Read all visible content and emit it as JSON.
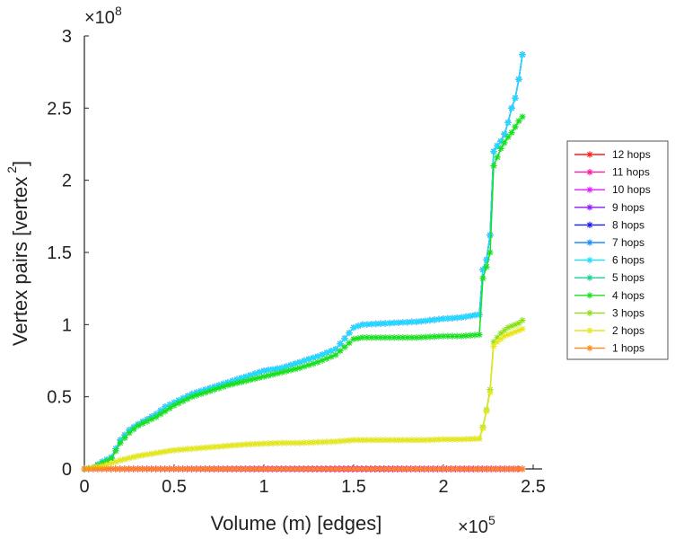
{
  "chart_data": {
    "type": "line",
    "xlabel": "Volume (m) [edges]",
    "ylabel": "Vertex pairs [vertex",
    "ylabel_exp": "2",
    "ylabel_close": "]",
    "x_multiplier": "×10",
    "x_multiplier_exp": "5",
    "y_multiplier": "×10",
    "y_multiplier_exp": "8",
    "x_scale": 100000,
    "y_scale": 100000000,
    "xlim": [
      0,
      2.55
    ],
    "ylim": [
      0,
      3.0
    ],
    "xticks": [
      0,
      0.5,
      1,
      1.5,
      2,
      2.5
    ],
    "xtick_labels": [
      "0",
      "0.5",
      "1",
      "1.5",
      "2",
      "2.5"
    ],
    "yticks": [
      0,
      0.5,
      1,
      1.5,
      2,
      2.5,
      3
    ],
    "ytick_labels": [
      "0",
      "0.5",
      "1",
      "1.5",
      "2",
      "2.5",
      "3"
    ],
    "legend_position": "right",
    "series": [
      {
        "name": "12 hops",
        "color": "#ff1a1a",
        "x": [
          0,
          2.44
        ],
        "y": [
          0,
          0
        ]
      },
      {
        "name": "11 hops",
        "color": "#ff1aa8",
        "x": [
          0,
          2.44
        ],
        "y": [
          0,
          0
        ]
      },
      {
        "name": "10 hops",
        "color": "#e01aff",
        "x": [
          0,
          2.44
        ],
        "y": [
          0,
          0
        ]
      },
      {
        "name": "9 hops",
        "color": "#8a1aff",
        "x": [
          0,
          0.05,
          0.1,
          0.15,
          0.2,
          0.25,
          0.3,
          0.4,
          0.45,
          0.5,
          0.6,
          0.7,
          0.8,
          0.9,
          1.0,
          1.1,
          1.2,
          1.3,
          1.4,
          1.5,
          1.55,
          1.7,
          1.85,
          2.0,
          2.1,
          2.2,
          2.22,
          2.24,
          2.26,
          2.28,
          2.3,
          2.32,
          2.34,
          2.36,
          2.38,
          2.4,
          2.42,
          2.44
        ],
        "y": [
          0,
          0.01,
          0.05,
          0.08,
          0.2,
          0.27,
          0.31,
          0.38,
          0.43,
          0.46,
          0.52,
          0.56,
          0.6,
          0.64,
          0.68,
          0.7,
          0.74,
          0.78,
          0.83,
          0.98,
          1.0,
          1.01,
          1.02,
          1.04,
          1.05,
          1.07,
          1.38,
          1.45,
          1.62,
          2.2,
          2.24,
          2.27,
          2.32,
          2.4,
          2.5,
          2.57,
          2.7,
          2.87
        ]
      },
      {
        "name": "8 hops",
        "color": "#1a1aff",
        "x": [
          0,
          0.05,
          0.1,
          0.15,
          0.2,
          0.25,
          0.3,
          0.4,
          0.45,
          0.5,
          0.6,
          0.7,
          0.8,
          0.9,
          1.0,
          1.1,
          1.2,
          1.3,
          1.4,
          1.5,
          1.55,
          1.7,
          1.85,
          2.0,
          2.1,
          2.2,
          2.22,
          2.24,
          2.26,
          2.28,
          2.3,
          2.32,
          2.34,
          2.36,
          2.38,
          2.4,
          2.42,
          2.44
        ],
        "y": [
          0,
          0.01,
          0.05,
          0.08,
          0.2,
          0.27,
          0.31,
          0.38,
          0.43,
          0.46,
          0.52,
          0.56,
          0.6,
          0.64,
          0.68,
          0.7,
          0.74,
          0.78,
          0.83,
          0.98,
          1.0,
          1.01,
          1.02,
          1.04,
          1.05,
          1.07,
          1.38,
          1.45,
          1.62,
          2.2,
          2.24,
          2.27,
          2.32,
          2.4,
          2.5,
          2.57,
          2.7,
          2.87
        ]
      },
      {
        "name": "7 hops",
        "color": "#1a8cff",
        "x": [
          0,
          0.05,
          0.1,
          0.15,
          0.2,
          0.25,
          0.3,
          0.4,
          0.45,
          0.5,
          0.6,
          0.7,
          0.8,
          0.9,
          1.0,
          1.1,
          1.2,
          1.3,
          1.4,
          1.5,
          1.55,
          1.7,
          1.85,
          2.0,
          2.1,
          2.2,
          2.22,
          2.24,
          2.26,
          2.28,
          2.3,
          2.32,
          2.34,
          2.36,
          2.38,
          2.4,
          2.42,
          2.44
        ],
        "y": [
          0,
          0.01,
          0.05,
          0.08,
          0.2,
          0.27,
          0.31,
          0.38,
          0.43,
          0.46,
          0.52,
          0.56,
          0.6,
          0.64,
          0.68,
          0.7,
          0.74,
          0.78,
          0.83,
          0.98,
          1.0,
          1.01,
          1.02,
          1.04,
          1.05,
          1.07,
          1.38,
          1.45,
          1.62,
          2.2,
          2.24,
          2.27,
          2.32,
          2.4,
          2.5,
          2.57,
          2.7,
          2.87
        ]
      },
      {
        "name": "6 hops",
        "color": "#1ae0ff",
        "x": [
          0,
          0.05,
          0.1,
          0.15,
          0.2,
          0.25,
          0.3,
          0.4,
          0.45,
          0.5,
          0.6,
          0.7,
          0.8,
          0.9,
          1.0,
          1.1,
          1.2,
          1.3,
          1.4,
          1.5,
          1.55,
          1.7,
          1.85,
          2.0,
          2.1,
          2.2,
          2.22,
          2.24,
          2.26,
          2.28,
          2.3,
          2.32,
          2.34,
          2.36,
          2.38,
          2.4,
          2.42,
          2.44
        ],
        "y": [
          0,
          0.01,
          0.05,
          0.08,
          0.2,
          0.27,
          0.31,
          0.38,
          0.43,
          0.46,
          0.52,
          0.56,
          0.6,
          0.64,
          0.68,
          0.7,
          0.74,
          0.78,
          0.83,
          0.98,
          1.0,
          1.01,
          1.02,
          1.04,
          1.05,
          1.07,
          1.38,
          1.45,
          1.62,
          2.2,
          2.24,
          2.27,
          2.32,
          2.4,
          2.5,
          2.57,
          2.7,
          2.87
        ]
      },
      {
        "name": "5 hops",
        "color": "#1ad28c",
        "x": [
          0,
          0.05,
          0.1,
          0.15,
          0.2,
          0.25,
          0.3,
          0.4,
          0.45,
          0.5,
          0.6,
          0.7,
          0.8,
          0.9,
          1.0,
          1.1,
          1.2,
          1.3,
          1.4,
          1.5,
          1.55,
          1.7,
          1.85,
          2.0,
          2.1,
          2.2,
          2.22,
          2.24,
          2.26,
          2.28,
          2.3,
          2.32,
          2.34,
          2.36,
          2.38,
          2.4,
          2.42,
          2.44
        ],
        "y": [
          0,
          0.01,
          0.04,
          0.07,
          0.18,
          0.25,
          0.3,
          0.36,
          0.4,
          0.44,
          0.5,
          0.54,
          0.58,
          0.61,
          0.64,
          0.67,
          0.7,
          0.74,
          0.79,
          0.9,
          0.91,
          0.91,
          0.91,
          0.92,
          0.92,
          0.93,
          1.32,
          1.4,
          1.5,
          2.1,
          2.16,
          2.22,
          2.26,
          2.3,
          2.33,
          2.37,
          2.41,
          2.44
        ]
      },
      {
        "name": "4 hops",
        "color": "#1ae01a",
        "x": [
          0,
          0.05,
          0.1,
          0.15,
          0.2,
          0.25,
          0.3,
          0.4,
          0.45,
          0.5,
          0.6,
          0.7,
          0.8,
          0.9,
          1.0,
          1.1,
          1.2,
          1.3,
          1.4,
          1.5,
          1.55,
          1.7,
          1.85,
          2.0,
          2.1,
          2.2,
          2.22,
          2.24,
          2.26,
          2.28,
          2.3,
          2.32,
          2.34,
          2.36,
          2.38,
          2.4,
          2.42,
          2.44
        ],
        "y": [
          0,
          0.01,
          0.04,
          0.07,
          0.18,
          0.25,
          0.3,
          0.36,
          0.4,
          0.44,
          0.5,
          0.54,
          0.58,
          0.61,
          0.64,
          0.67,
          0.7,
          0.74,
          0.79,
          0.9,
          0.91,
          0.91,
          0.91,
          0.92,
          0.92,
          0.93,
          1.32,
          1.4,
          1.5,
          2.1,
          2.16,
          2.22,
          2.26,
          2.3,
          2.33,
          2.37,
          2.41,
          2.44
        ]
      },
      {
        "name": "3 hops",
        "color": "#8ce01a",
        "x": [
          0,
          0.1,
          0.2,
          0.3,
          0.4,
          0.5,
          0.6,
          0.7,
          0.8,
          0.9,
          1.0,
          1.1,
          1.2,
          1.3,
          1.4,
          1.5,
          1.6,
          1.7,
          1.8,
          1.9,
          2.0,
          2.1,
          2.2,
          2.22,
          2.24,
          2.26,
          2.28,
          2.3,
          2.32,
          2.34,
          2.36,
          2.38,
          2.4,
          2.42,
          2.44
        ],
        "y": [
          0,
          0.02,
          0.06,
          0.09,
          0.11,
          0.13,
          0.14,
          0.15,
          0.16,
          0.17,
          0.175,
          0.18,
          0.18,
          0.185,
          0.19,
          0.2,
          0.2,
          0.2,
          0.2,
          0.2,
          0.205,
          0.205,
          0.21,
          0.29,
          0.41,
          0.55,
          0.88,
          0.91,
          0.94,
          0.96,
          0.98,
          0.99,
          1.0,
          1.01,
          1.03
        ]
      },
      {
        "name": "2 hops",
        "color": "#e6e61a",
        "x": [
          0,
          0.1,
          0.2,
          0.3,
          0.4,
          0.5,
          0.6,
          0.7,
          0.8,
          0.9,
          1.0,
          1.1,
          1.2,
          1.3,
          1.4,
          1.5,
          1.6,
          1.7,
          1.8,
          1.9,
          2.0,
          2.1,
          2.2,
          2.22,
          2.24,
          2.26,
          2.28,
          2.3,
          2.32,
          2.34,
          2.36,
          2.38,
          2.4,
          2.42,
          2.44
        ],
        "y": [
          0,
          0.02,
          0.06,
          0.09,
          0.11,
          0.13,
          0.14,
          0.15,
          0.16,
          0.17,
          0.175,
          0.18,
          0.18,
          0.185,
          0.19,
          0.2,
          0.2,
          0.2,
          0.2,
          0.2,
          0.205,
          0.205,
          0.21,
          0.28,
          0.4,
          0.53,
          0.85,
          0.88,
          0.9,
          0.92,
          0.93,
          0.94,
          0.95,
          0.96,
          0.97
        ]
      },
      {
        "name": "1 hops",
        "color": "#ff8c1a",
        "x": [
          0,
          0.05,
          0.1,
          0.15,
          0.2,
          0.25,
          0.3,
          0.35,
          0.4,
          0.45,
          0.5,
          0.55,
          0.6,
          0.65,
          0.7,
          0.75,
          0.8,
          0.85,
          0.9,
          0.95,
          1.0,
          1.05,
          1.1,
          1.15,
          1.2,
          1.25,
          1.3,
          1.35,
          1.4,
          1.45,
          1.5,
          1.55,
          1.6,
          1.65,
          1.7,
          1.75,
          1.8,
          1.85,
          1.9,
          1.95,
          2.0,
          2.05,
          2.1,
          2.15,
          2.2,
          2.25,
          2.3,
          2.35,
          2.4,
          2.44
        ],
        "y": [
          0,
          0,
          0,
          0,
          0,
          0,
          0,
          0,
          0,
          0,
          0,
          0,
          0,
          0,
          0,
          0,
          0,
          0,
          0,
          0,
          0,
          0,
          0,
          0,
          0,
          0,
          0,
          0,
          0,
          0,
          0,
          0,
          0,
          0,
          0,
          0,
          0,
          0,
          0,
          0,
          0,
          0,
          0,
          0,
          0,
          0,
          0,
          0,
          0,
          0
        ]
      }
    ]
  }
}
